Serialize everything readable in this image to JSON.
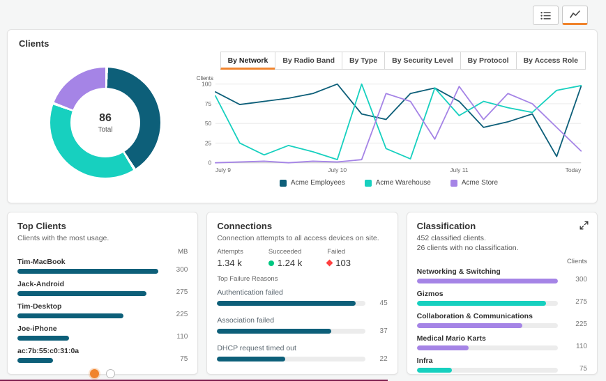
{
  "colors": {
    "teal": "#0d5f79",
    "cyan": "#17d0bf",
    "purple": "#a584e6",
    "orange": "#f0842d",
    "green": "#00c781",
    "red": "#ff4040",
    "track": "#ececec"
  },
  "icons": {
    "list_view": "list-icon",
    "chart_view": "line-chart-icon",
    "succeeded": "green-dot-icon",
    "failed": "red-diamond-icon",
    "expand": "expand-icon"
  },
  "clients_card": {
    "title": "Clients",
    "donut": {
      "total": "86",
      "total_label": "Total",
      "segments": [
        {
          "name": "Acme Employees",
          "value": 35,
          "color": "#0d5f79"
        },
        {
          "name": "Acme Warehouse",
          "value": 34,
          "color": "#17d0bf"
        },
        {
          "name": "Acme Store",
          "value": 17,
          "color": "#a584e6"
        }
      ]
    },
    "tabs": [
      {
        "label": "By Network",
        "selected": true
      },
      {
        "label": "By Radio Band",
        "selected": false
      },
      {
        "label": "By Type",
        "selected": false
      },
      {
        "label": "By Security Level",
        "selected": false
      },
      {
        "label": "By Protocol",
        "selected": false
      },
      {
        "label": "By Access Role",
        "selected": false
      }
    ],
    "chart_data": {
      "type": "line",
      "title": "Clients over time by network",
      "ylabel": "Clients",
      "ylim": [
        0,
        100
      ],
      "yticks": [
        0,
        25,
        50,
        75,
        100
      ],
      "x_tick_labels": [
        {
          "index": 0,
          "label": "July 9"
        },
        {
          "index": 5,
          "label": "July 10"
        },
        {
          "index": 10,
          "label": "July 11"
        },
        {
          "index": 15,
          "label": "Today"
        }
      ],
      "series": [
        {
          "name": "Acme Employees",
          "color": "#0d5f79",
          "values": [
            90,
            74,
            78,
            82,
            88,
            100,
            62,
            55,
            88,
            95,
            78,
            45,
            52,
            62,
            8,
            97
          ]
        },
        {
          "name": "Acme Warehouse",
          "color": "#17d0bf",
          "values": [
            85,
            25,
            10,
            22,
            14,
            4,
            100,
            18,
            5,
            95,
            60,
            78,
            70,
            64,
            92,
            98
          ]
        },
        {
          "name": "Acme Store",
          "color": "#a584e6",
          "values": [
            0,
            1,
            2,
            0,
            2,
            1,
            4,
            88,
            78,
            30,
            97,
            55,
            88,
            75,
            45,
            15
          ]
        }
      ],
      "legend_position": "bottom",
      "grid": true
    }
  },
  "top_clients": {
    "title": "Top Clients",
    "subtitle": "Clients with the most usage.",
    "unit_header": "MB",
    "max": 300,
    "items": [
      {
        "name": "Tim-MacBook",
        "value": 300
      },
      {
        "name": "Jack-Android",
        "value": 275
      },
      {
        "name": "Tim-Desktop",
        "value": 225
      },
      {
        "name": "Joe-iPhone",
        "value": 110
      },
      {
        "name": "ac:7b:55:c0:31:0a",
        "value": 75
      }
    ],
    "pagination": {
      "pages": 2,
      "active_page": 1
    }
  },
  "connections": {
    "title": "Connections",
    "subtitle": "Connection attempts to all access devices on site.",
    "stats": [
      {
        "label": "Attempts",
        "value": "1.34 k"
      },
      {
        "label": "Succeeded",
        "value": "1.24 k"
      },
      {
        "label": "Failed",
        "value": "103"
      }
    ],
    "failure_header": "Top Failure Reasons",
    "max": 48,
    "items": [
      {
        "label": "Authentication failed",
        "value": 45
      },
      {
        "label": "Association failed",
        "value": 37
      },
      {
        "label": "DHCP request timed out",
        "value": 22
      }
    ]
  },
  "classification": {
    "title": "Classification",
    "line1": "452 classified clients.",
    "line2": "26 clients with no classification.",
    "unit_header": "Clients",
    "max": 300,
    "items": [
      {
        "name": "Networking & Switching",
        "value": 300,
        "color": "#a584e6"
      },
      {
        "name": "Gizmos",
        "value": 275,
        "color": "#17d0bf"
      },
      {
        "name": "Collaboration & Communications",
        "value": 225,
        "color": "#a584e6"
      },
      {
        "name": "Medical Mario Karts",
        "value": 110,
        "color": "#a584e6"
      },
      {
        "name": "Infra",
        "value": 75,
        "color": "#17d0bf"
      }
    ]
  }
}
